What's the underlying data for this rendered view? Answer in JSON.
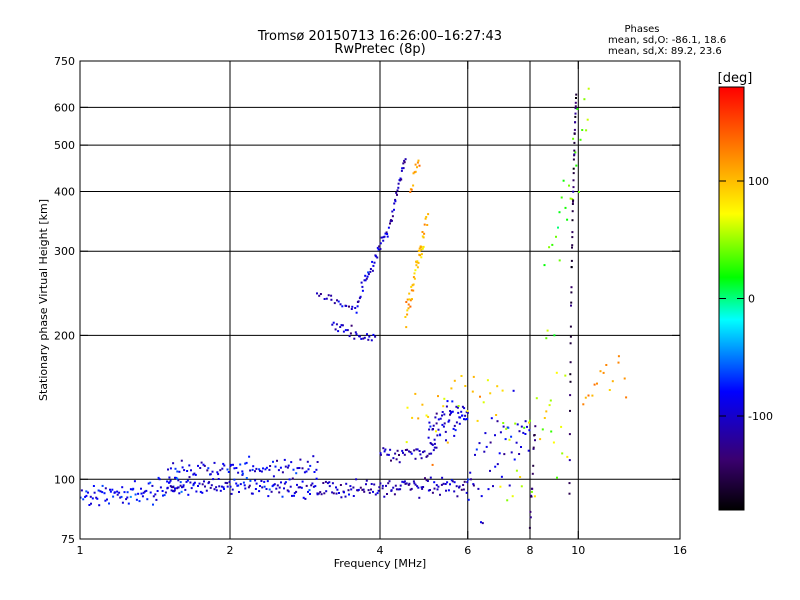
{
  "chart_data": {
    "type": "scatter",
    "title": "Tromsø 20150713 16:26:00–16:27:43",
    "subtitle": "RwPretec (8p)",
    "xlabel": "Frequency [MHz]",
    "ylabel": "Stationary phase Virtual Height [km]",
    "x_scale": "log",
    "y_scale": "log",
    "xlim": [
      1,
      16
    ],
    "ylim": [
      75,
      750
    ],
    "x_ticks": [
      1,
      2,
      4,
      6,
      8,
      10,
      16
    ],
    "x_tick_labels": [
      "1",
      "2",
      "4",
      "6",
      "8",
      "10",
      "16"
    ],
    "y_ticks": [
      75,
      100,
      200,
      300,
      400,
      500,
      600,
      750
    ],
    "y_tick_labels": [
      "75",
      "100",
      "200",
      "300",
      "400",
      "500",
      "600",
      "750"
    ],
    "grid_x": [
      2,
      4,
      6,
      8,
      10
    ],
    "grid_y": [
      100,
      200,
      300,
      400,
      500,
      600
    ],
    "stats": {
      "header": "Phases",
      "line_o": "mean, sd,O: -86.1, 18.6",
      "line_x": "mean, sd,X: 89.2, 23.6"
    },
    "colorbar": {
      "label": "[deg]",
      "ticks": [
        100,
        0,
        -100
      ],
      "tick_labels": [
        "100",
        "0",
        "-100"
      ],
      "range": [
        -180,
        180
      ],
      "colormap": "rainbow",
      "colors_low_to_high": [
        "#000000",
        "#3a0070",
        "#0000ff",
        "#00ffff",
        "#00ff00",
        "#ffff00",
        "#ff8000",
        "#ff0000"
      ]
    },
    "series": [
      {
        "segments": [
          {
            "f0": 1.0,
            "f1": 1.6,
            "h0": 92,
            "h1": 95,
            "s": 2.5,
            "n": 90,
            "p": -80
          },
          {
            "f0": 1.5,
            "f1": 3.0,
            "h0": 97,
            "h1": 96,
            "s": 2.5,
            "n": 120,
            "p": -95
          },
          {
            "f0": 1.5,
            "f1": 3.0,
            "h0": 104,
            "h1": 106,
            "s": 2.5,
            "n": 90,
            "p": -90
          },
          {
            "f0": 3.0,
            "f1": 6.0,
            "h0": 95,
            "h1": 97,
            "s": 2.0,
            "n": 120,
            "p": -110
          },
          {
            "f0": 3.0,
            "f1": 3.6,
            "h0": 245,
            "h1": 225,
            "s": 3,
            "n": 20,
            "p": -110
          },
          {
            "f0": 3.2,
            "f1": 3.9,
            "h0": 210,
            "h1": 195,
            "s": 3,
            "n": 28,
            "p": -105
          },
          {
            "f0": 3.6,
            "f1": 4.2,
            "h0": 235,
            "h1": 340,
            "s": 5,
            "n": 40,
            "p": -100
          },
          {
            "f0": 4.2,
            "f1": 4.5,
            "h0": 340,
            "h1": 470,
            "s": 6,
            "n": 25,
            "p": -110
          },
          {
            "f0": 4.0,
            "f1": 5.2,
            "h0": 112,
            "h1": 115,
            "s": 2.5,
            "n": 40,
            "p": -110
          },
          {
            "f0": 5.0,
            "f1": 6.0,
            "h0": 125,
            "h1": 140,
            "s": 6,
            "n": 60,
            "p": -100
          },
          {
            "f0": 6.0,
            "f1": 8.0,
            "h0": 100,
            "h1": 130,
            "s": 12,
            "n": 50,
            "p": -95
          }
        ]
      },
      {
        "segments": [
          {
            "f0": 4.6,
            "f1": 4.8,
            "h0": 400,
            "h1": 470,
            "s": 10,
            "n": 12,
            "p": 110
          },
          {
            "f0": 4.5,
            "f1": 4.9,
            "h0": 215,
            "h1": 320,
            "s": 8,
            "n": 40,
            "p": 105
          },
          {
            "f0": 4.8,
            "f1": 5.0,
            "h0": 300,
            "h1": 360,
            "s": 8,
            "n": 10,
            "p": 105
          },
          {
            "f0": 4.5,
            "f1": 7.0,
            "h0": 125,
            "h1": 160,
            "s": 15,
            "n": 30,
            "p": 90
          },
          {
            "f0": 7.0,
            "f1": 9.5,
            "h0": 100,
            "h1": 140,
            "s": 20,
            "n": 30,
            "p": 60
          },
          {
            "f0": 8.5,
            "f1": 10.5,
            "h0": 150,
            "h1": 620,
            "s": 60,
            "n": 30,
            "p": 40
          },
          {
            "f0": 10.2,
            "f1": 12.5,
            "h0": 150,
            "h1": 170,
            "s": 15,
            "n": 15,
            "p": 120
          }
        ]
      },
      {
        "segments": [
          {
            "f0": 9.6,
            "f1": 9.9,
            "h0": 90,
            "h1": 640,
            "s": 5,
            "n": 50,
            "p": -150
          },
          {
            "f0": 8.0,
            "f1": 8.2,
            "h0": 80,
            "h1": 130,
            "s": 3,
            "n": 15,
            "p": -140
          }
        ]
      }
    ]
  }
}
